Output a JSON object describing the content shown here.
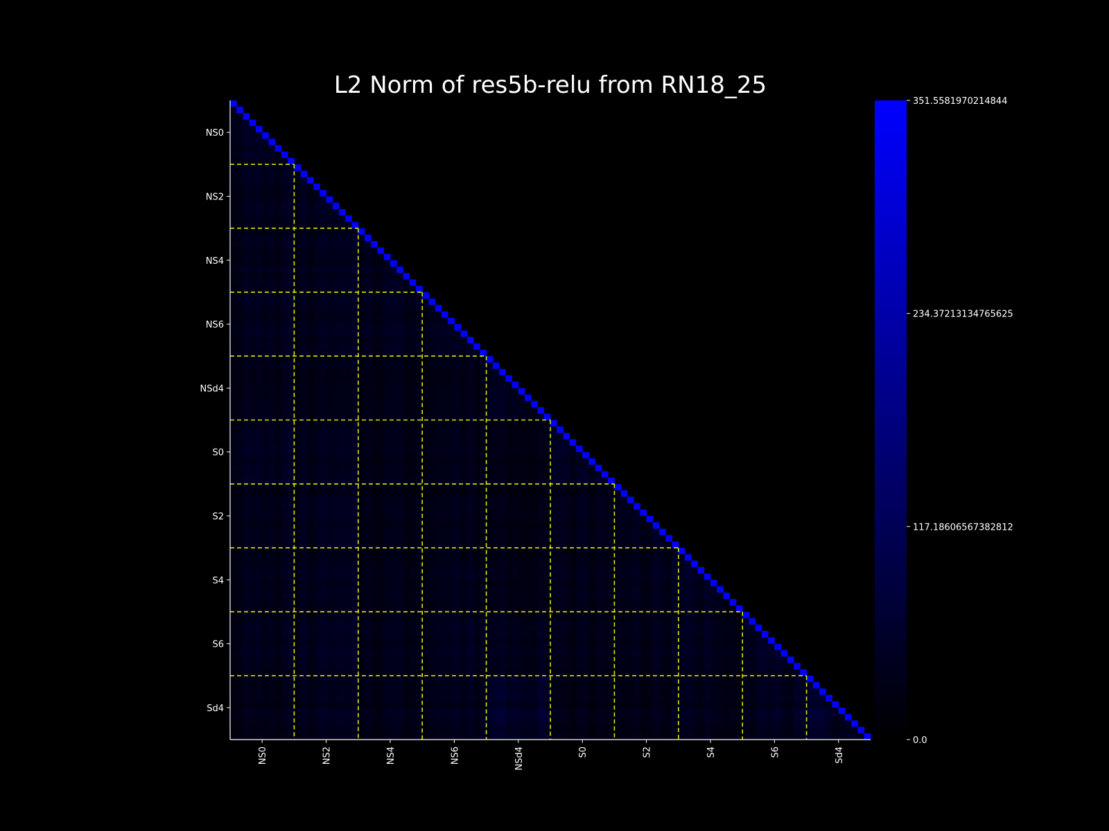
{
  "chart_data": {
    "type": "heatmap",
    "title": "L2 Norm of res5b-relu from RN18_25",
    "xlabel": "",
    "ylabel": "",
    "matrix_layout": "lower-triangular",
    "n_cells": 100,
    "group_size": 10,
    "groups": [
      "NS0",
      "NS2",
      "NS4",
      "NS6",
      "NSd4",
      "S0",
      "S2",
      "S4",
      "S6",
      "Sd4"
    ],
    "x_tick_labels": [
      "NS0",
      "NS2",
      "NS4",
      "NS6",
      "NSd4",
      "S0",
      "S2",
      "S4",
      "S6",
      "Sd4"
    ],
    "y_tick_labels": [
      "NS0",
      "NS2",
      "NS4",
      "NS6",
      "NSd4",
      "S0",
      "S2",
      "S4",
      "S6",
      "Sd4"
    ],
    "colorbar": {
      "min": 0.0,
      "max": 351.5581970214844,
      "tick_labels": [
        "0.0",
        "117.18606567382812",
        "234.37213134765625",
        "351.5581970214844"
      ],
      "tick_values": [
        0.0,
        117.18606567382812,
        234.37213134765625,
        351.5581970214844
      ],
      "colors": [
        "#000000",
        "#0000ff"
      ]
    },
    "diagonal_value": 351.5581970214844,
    "off_diagonal_typical_range": [
      10,
      70
    ],
    "block_mean_values": [
      [
        40
      ],
      [
        38,
        42
      ],
      [
        35,
        36,
        40
      ],
      [
        36,
        34,
        38,
        42
      ],
      [
        34,
        30,
        32,
        34,
        48
      ],
      [
        38,
        34,
        30,
        32,
        30,
        40
      ],
      [
        30,
        34,
        28,
        30,
        28,
        30,
        36
      ],
      [
        32,
        34,
        30,
        34,
        32,
        30,
        36,
        40
      ],
      [
        34,
        38,
        34,
        40,
        40,
        30,
        34,
        38,
        44
      ],
      [
        28,
        34,
        32,
        36,
        56,
        26,
        30,
        34,
        38,
        46
      ]
    ],
    "group_boundary_style": "dashed yellow lines",
    "group_boundary_color": "#e6e600"
  }
}
